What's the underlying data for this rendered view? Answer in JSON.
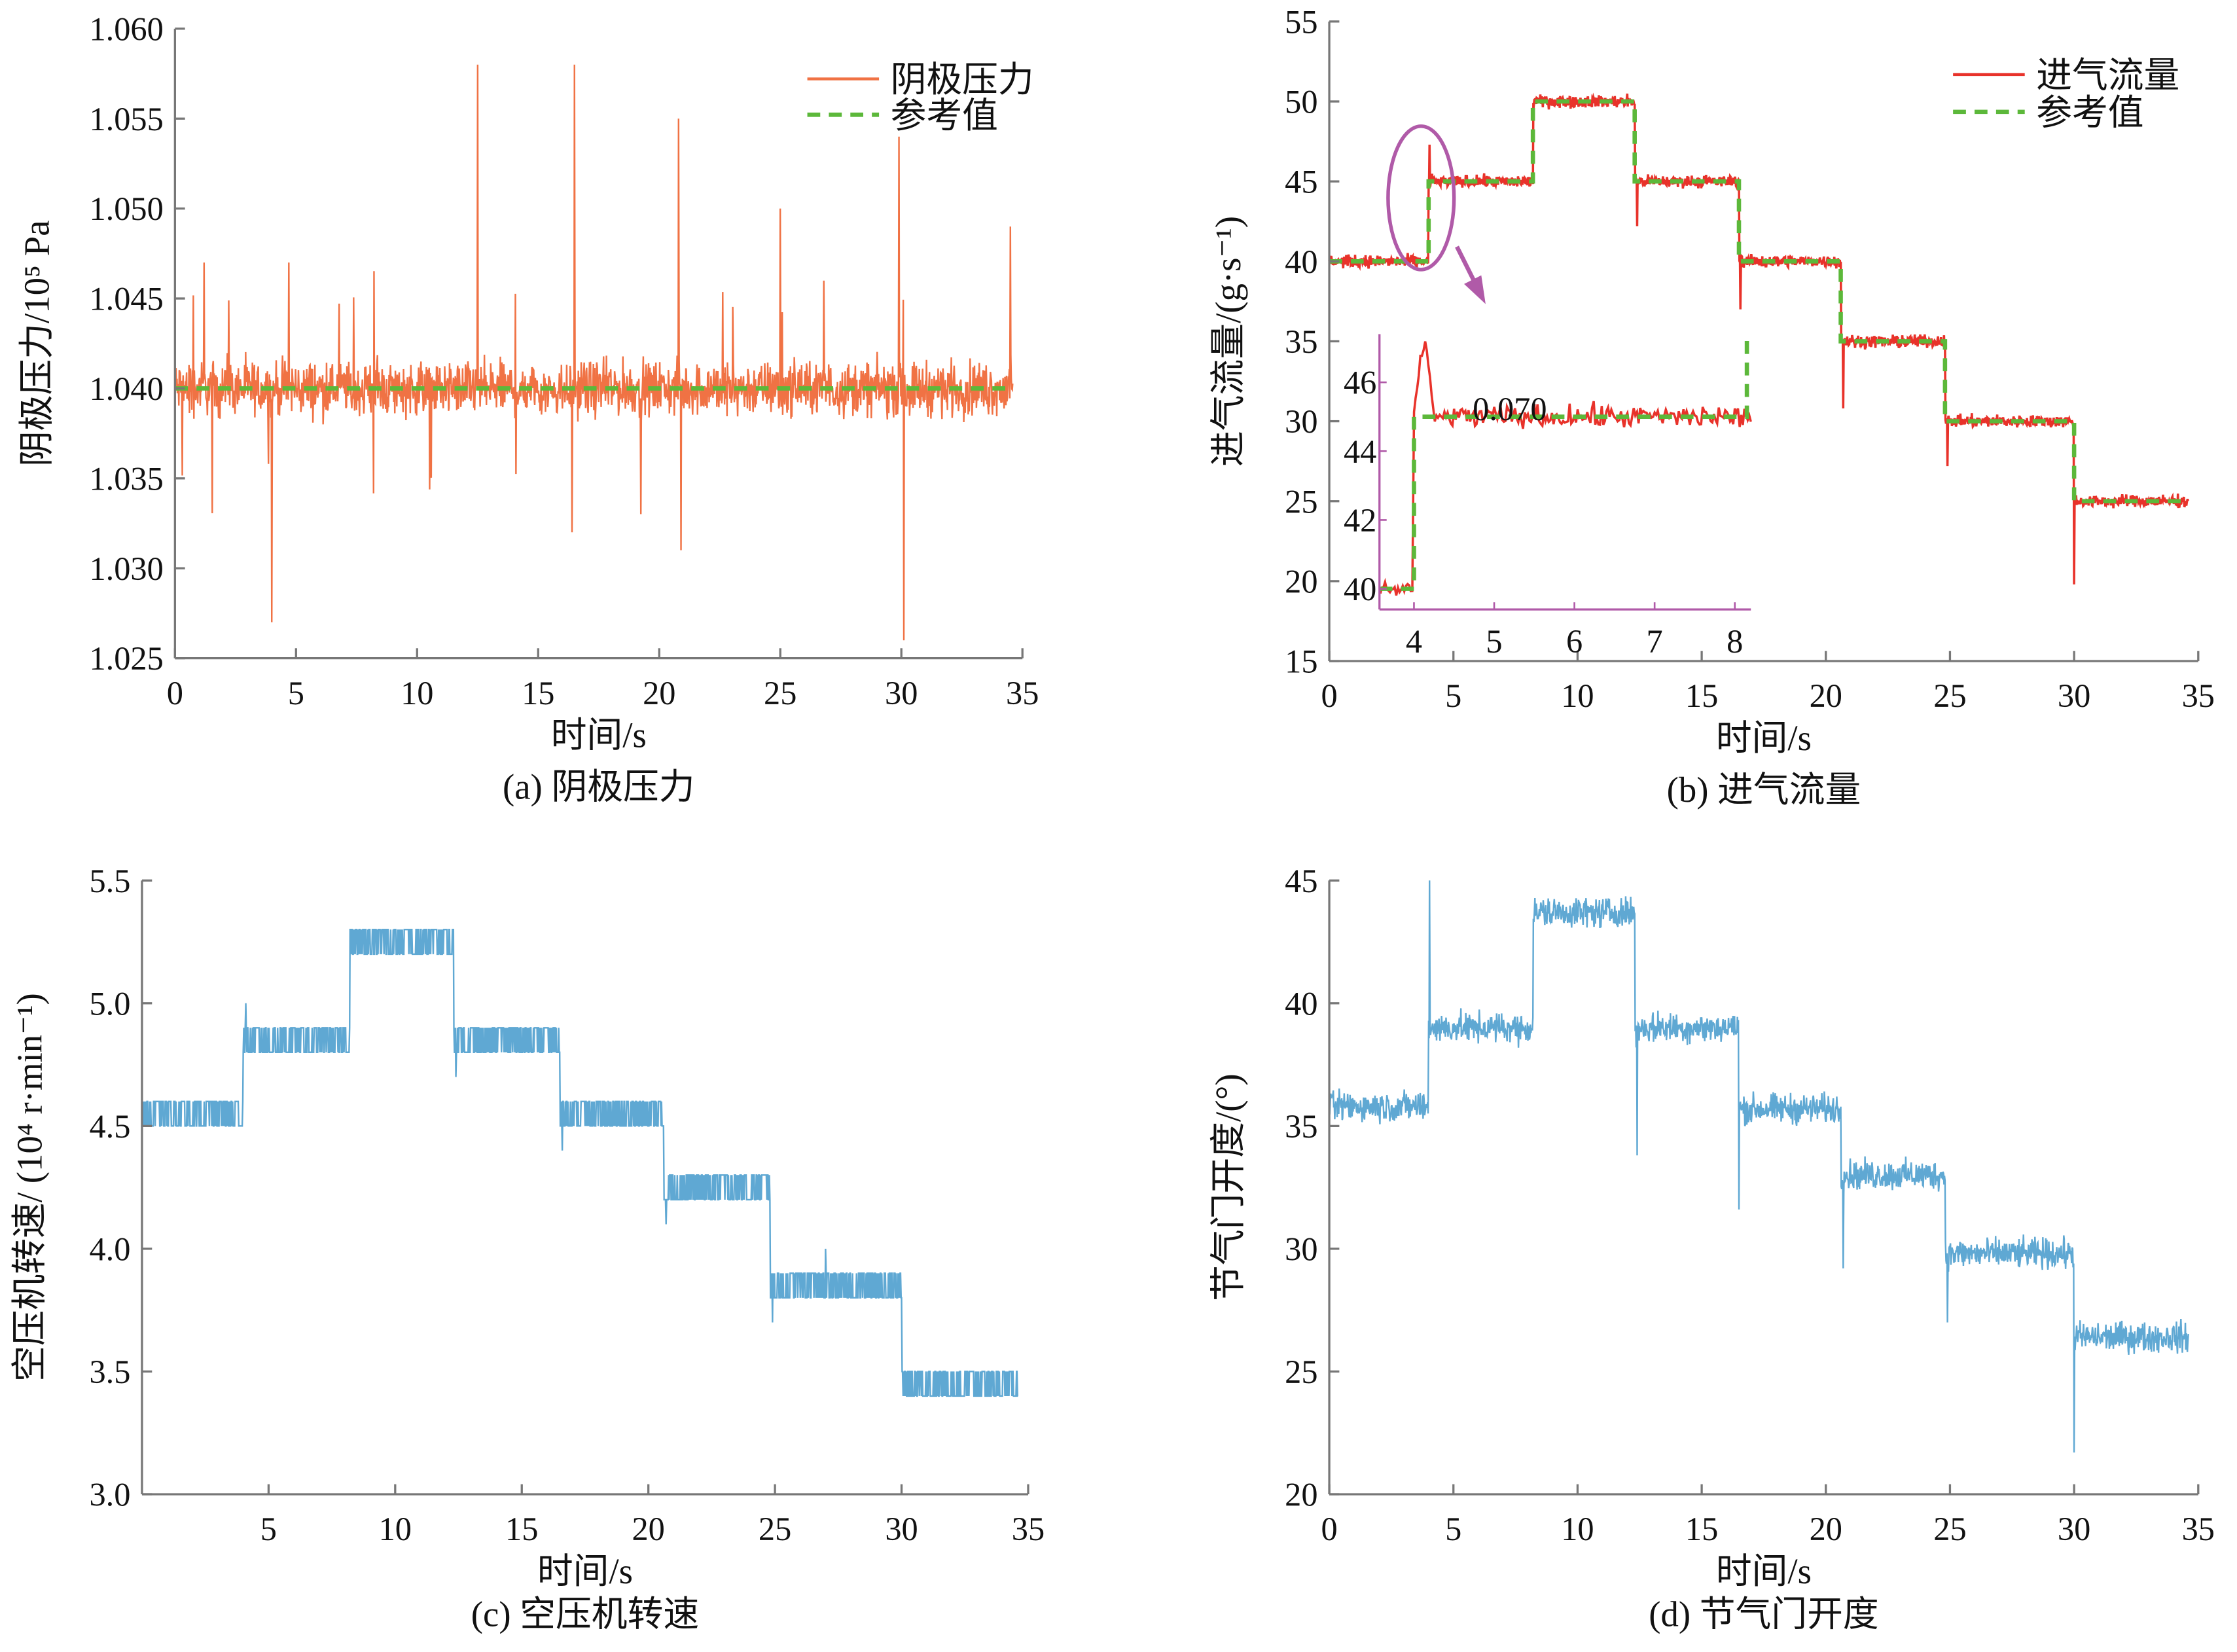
{
  "chart_data": [
    {
      "id": "a",
      "type": "line",
      "caption": "(a) 阴极压力",
      "xlabel": "时间/s",
      "ylabel": "阴极压力/10⁵ Pa",
      "xlim": [
        0,
        35
      ],
      "ylim": [
        1.025,
        1.06
      ],
      "xticks": [
        0,
        5,
        10,
        15,
        20,
        25,
        30,
        35
      ],
      "xtick_labels": [
        "0",
        "5",
        "10",
        "15",
        "20",
        "25",
        "30",
        "35"
      ],
      "yticks": [
        1.025,
        1.03,
        1.035,
        1.04,
        1.045,
        1.05,
        1.055,
        1.06
      ],
      "ytick_labels": [
        "1.025",
        "1.030",
        "1.035",
        "1.040",
        "1.045",
        "1.050",
        "1.055",
        "1.060"
      ],
      "legend": [
        "阴极压力",
        "参考值"
      ],
      "legend_position": "top-right",
      "colors": {
        "measured": "#f07244",
        "reference": "#5cb83a"
      },
      "reference_steps": [
        [
          0,
          34.6,
          1.04
        ]
      ],
      "measured_band": [
        1.036,
        1.043
      ],
      "spikes": [
        [
          4.0,
          1.027
        ],
        [
          12.5,
          1.058
        ],
        [
          16.5,
          1.058
        ],
        [
          20.8,
          1.055
        ],
        [
          20.9,
          1.031
        ],
        [
          25.0,
          1.05
        ],
        [
          29.9,
          1.054
        ],
        [
          30.1,
          1.026
        ],
        [
          34.5,
          1.049
        ],
        [
          1.2,
          1.047
        ],
        [
          4.7,
          1.047
        ],
        [
          16.4,
          1.032
        ]
      ]
    },
    {
      "id": "b",
      "type": "line",
      "caption": "(b) 进气流量",
      "xlabel": "时间/s",
      "ylabel": "进气流量/(g·s⁻¹)",
      "xlim": [
        0,
        35
      ],
      "ylim": [
        15,
        55
      ],
      "xticks": [
        0,
        5,
        10,
        15,
        20,
        25,
        30,
        35
      ],
      "xtick_labels": [
        "0",
        "5",
        "10",
        "15",
        "20",
        "25",
        "30",
        "35"
      ],
      "yticks": [
        15,
        20,
        25,
        30,
        35,
        40,
        45,
        50,
        55
      ],
      "ytick_labels": [
        "15",
        "20",
        "25",
        "30",
        "35",
        "40",
        "45",
        "50",
        "55"
      ],
      "legend": [
        "进气流量",
        "参考值"
      ],
      "legend_position": "top-right",
      "colors": {
        "measured": "#e8322a",
        "reference": "#5cb83a",
        "annotation": "#b05aa8"
      },
      "reference_steps": [
        [
          0,
          4.0,
          40
        ],
        [
          4.0,
          8.2,
          45
        ],
        [
          8.2,
          12.3,
          50
        ],
        [
          12.3,
          16.5,
          45
        ],
        [
          16.5,
          20.6,
          40
        ],
        [
          20.6,
          24.8,
          35
        ],
        [
          24.8,
          30.0,
          30
        ],
        [
          30.0,
          34.6,
          25
        ]
      ],
      "spikes": [
        [
          4.05,
          47.3
        ],
        [
          12.4,
          42.2
        ],
        [
          16.55,
          37.0
        ],
        [
          20.7,
          30.8
        ],
        [
          24.9,
          27.2
        ],
        [
          30.0,
          19.8
        ]
      ],
      "inset": {
        "xlim": [
          3.57,
          8.2
        ],
        "ylim": [
          39.4,
          47.4
        ],
        "xticks": [
          4,
          5,
          6,
          7,
          8
        ],
        "xtick_labels": [
          "4",
          "5",
          "6",
          "7",
          "8"
        ],
        "yticks": [
          40,
          42,
          44,
          46
        ],
        "ytick_labels": [
          "40",
          "42",
          "44",
          "46"
        ],
        "annotation": "0.070"
      }
    },
    {
      "id": "c",
      "type": "line",
      "caption": "(c) 空压机转速",
      "xlabel": "时间/s",
      "ylabel": "空压机转速/ (10⁴ r·min⁻¹)",
      "xlim": [
        0,
        35
      ],
      "ylim": [
        3.0,
        5.5
      ],
      "xticks": [
        5,
        10,
        15,
        20,
        25,
        30,
        35
      ],
      "xtick_labels": [
        "5",
        "10",
        "15",
        "20",
        "25",
        "30",
        "35"
      ],
      "yticks": [
        3.0,
        3.5,
        4.0,
        4.5,
        5.0,
        5.5
      ],
      "ytick_labels": [
        "3.0",
        "3.5",
        "4.0",
        "4.5",
        "5.0",
        "5.5"
      ],
      "colors": {
        "measured": "#5fa8d3"
      },
      "levels": [
        [
          0,
          4.0,
          4.5
        ],
        [
          4.0,
          8.2,
          4.8
        ],
        [
          8.2,
          12.3,
          5.2
        ],
        [
          12.3,
          16.5,
          4.8
        ],
        [
          16.5,
          20.6,
          4.5
        ],
        [
          20.6,
          24.8,
          4.2
        ],
        [
          24.8,
          30.0,
          3.8
        ],
        [
          30.0,
          34.6,
          3.4
        ]
      ],
      "quantum": 0.1,
      "spikes": [
        [
          4.1,
          5.0
        ],
        [
          12.4,
          4.7
        ],
        [
          16.6,
          4.4
        ],
        [
          20.7,
          4.1
        ],
        [
          24.9,
          3.7
        ],
        [
          27.0,
          4.0
        ]
      ]
    },
    {
      "id": "d",
      "type": "line",
      "caption": "(d) 节气门开度",
      "xlabel": "时间/s",
      "ylabel": "节气门开度/(°)",
      "xlim": [
        0,
        35
      ],
      "ylim": [
        20,
        45
      ],
      "xticks": [
        0,
        5,
        10,
        15,
        20,
        25,
        30,
        35
      ],
      "xtick_labels": [
        "0",
        "5",
        "10",
        "15",
        "20",
        "25",
        "30",
        "35"
      ],
      "yticks": [
        20,
        25,
        30,
        35,
        40,
        45
      ],
      "ytick_labels": [
        "20",
        "25",
        "30",
        "35",
        "40",
        "45"
      ],
      "colors": {
        "measured": "#5fa8d3"
      },
      "reference_steps": [
        [
          0,
          4.0,
          35.8
        ],
        [
          4.0,
          8.2,
          39.0
        ],
        [
          8.2,
          12.3,
          43.7
        ],
        [
          12.3,
          16.5,
          39.0
        ],
        [
          16.5,
          20.6,
          35.7
        ],
        [
          20.6,
          24.8,
          33.0
        ],
        [
          24.8,
          30.0,
          29.8
        ],
        [
          30.0,
          34.6,
          26.4
        ]
      ],
      "spikes": [
        [
          4.05,
          45.0
        ],
        [
          12.4,
          33.8
        ],
        [
          16.5,
          31.6
        ],
        [
          20.7,
          29.2
        ],
        [
          24.9,
          27.0
        ],
        [
          30.0,
          21.7
        ]
      ]
    }
  ]
}
